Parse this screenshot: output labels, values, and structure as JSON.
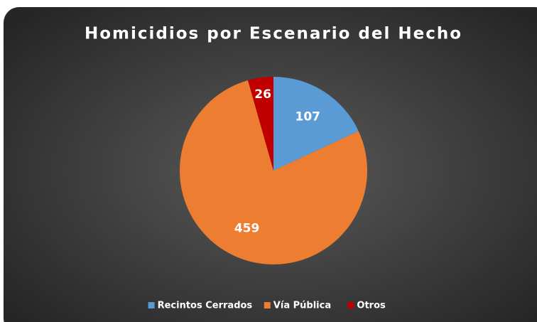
{
  "chart_data": {
    "type": "pie",
    "title": "Homicidios por Escenario del Hecho",
    "categories": [
      "Recintos Cerrados",
      "Vía Pública",
      "Otros"
    ],
    "values": [
      107,
      459,
      26
    ],
    "colors": [
      "#5b9bd5",
      "#ed7d31",
      "#c00000"
    ],
    "legend": "bottom"
  }
}
